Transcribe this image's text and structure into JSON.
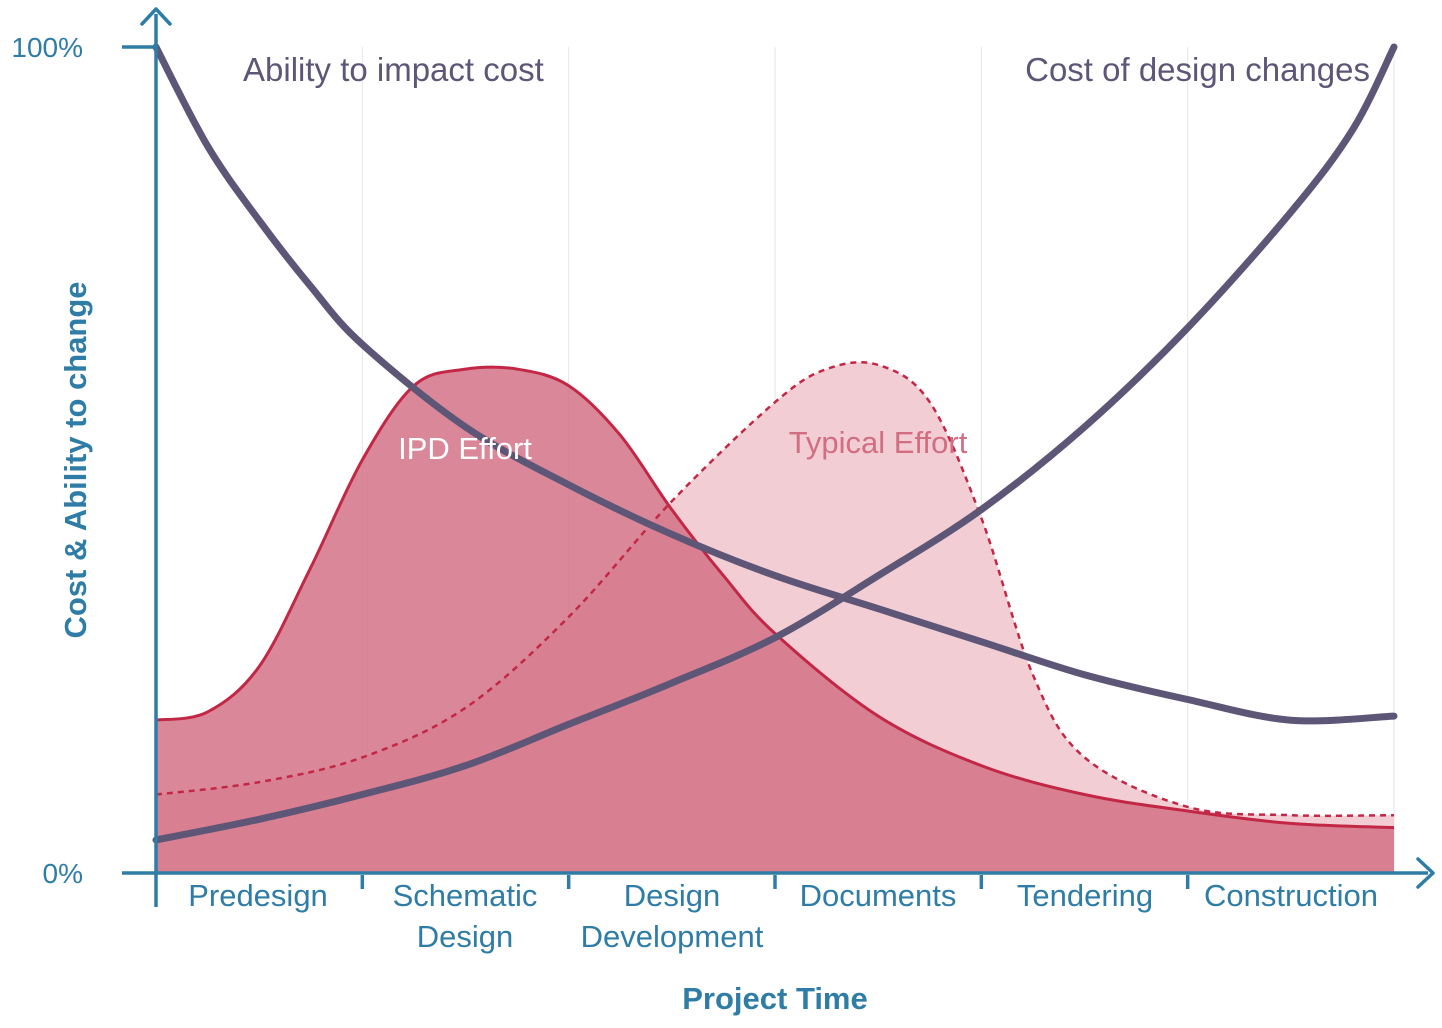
{
  "chart_data": {
    "type": "area",
    "xlabel": "Project Time",
    "ylabel": "Cost & Ability to change",
    "ylim": [
      0,
      100
    ],
    "yticks": [
      "0%",
      "100%"
    ],
    "categories": [
      {
        "line1": "Predesign",
        "line2": ""
      },
      {
        "line1": "Schematic",
        "line2": "Design"
      },
      {
        "line1": "Design",
        "line2": "Development"
      },
      {
        "line1": "Documents",
        "line2": ""
      },
      {
        "line1": "Tendering",
        "line2": ""
      },
      {
        "line1": "Construction",
        "line2": ""
      }
    ],
    "grid": "vertical",
    "colors": {
      "axis": "#2f7da6",
      "lines": "#5e5677",
      "ipd_fill": "#d26e82",
      "ipd_stroke": "#c22846",
      "typical_fill": "#f2cdd4",
      "typical_stroke": "#c22846",
      "grid": "#e6e6e6"
    },
    "series": [
      {
        "name": "Ability to impact cost",
        "style": "line",
        "x": [
          0,
          0.25,
          0.5,
          0.75,
          1,
          1.5,
          2,
          2.5,
          3,
          3.5,
          4,
          4.5,
          5,
          5.5,
          6
        ],
        "y": [
          100,
          88,
          79,
          71,
          64,
          54,
          47,
          41,
          36,
          32,
          28,
          24,
          21,
          18.5,
          19
        ]
      },
      {
        "name": "Cost of design changes",
        "style": "line",
        "x": [
          0,
          0.5,
          1,
          1.5,
          2,
          2.5,
          3,
          3.5,
          4,
          4.5,
          5,
          5.5,
          5.8,
          6
        ],
        "y": [
          4,
          6.5,
          9.5,
          13,
          18,
          23,
          28.5,
          36,
          44,
          54,
          66,
          80,
          90,
          100
        ]
      },
      {
        "name": "IPD Effort",
        "style": "area",
        "x": [
          0,
          0.25,
          0.5,
          0.75,
          1,
          1.25,
          1.5,
          1.75,
          2,
          2.25,
          2.5,
          2.75,
          3,
          3.5,
          4,
          4.5,
          5,
          5.5,
          6
        ],
        "y": [
          18.5,
          19.5,
          25,
          37,
          50,
          59,
          61,
          61,
          59,
          53,
          44,
          36,
          29,
          19,
          13,
          9.5,
          7.5,
          6,
          5.5
        ]
      },
      {
        "name": "Typical Effort",
        "style": "area-dashed",
        "x": [
          0,
          0.5,
          1,
          1.5,
          2,
          2.5,
          3,
          3.25,
          3.5,
          3.75,
          4,
          4.25,
          4.5,
          5,
          5.5,
          6
        ],
        "y": [
          9.5,
          11,
          14,
          20,
          31,
          45,
          57,
          61,
          61.5,
          57,
          43,
          24,
          14,
          8,
          7,
          7
        ]
      }
    ]
  }
}
